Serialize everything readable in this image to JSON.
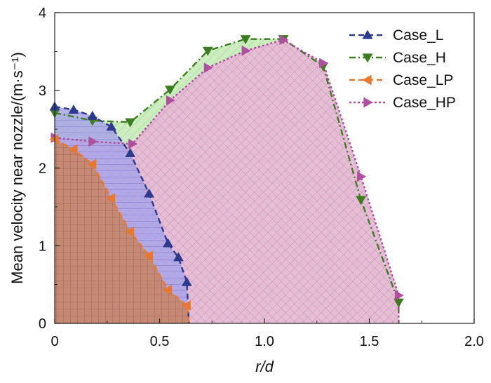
{
  "chart_data": {
    "type": "area",
    "xlabel": "r/d",
    "ylabel": "Mean velocity near nozzle/(m·s⁻¹)",
    "xlim": [
      0,
      2.0
    ],
    "ylim": [
      0,
      4
    ],
    "xticks": [
      "0",
      "0.5",
      "1.0",
      "1.5",
      "2.0"
    ],
    "xtick_values": [
      0,
      0.5,
      1.0,
      1.5,
      2.0
    ],
    "yticks": [
      "0",
      "1",
      "2",
      "3",
      "4"
    ],
    "ytick_values": [
      0,
      1,
      2,
      3,
      4
    ],
    "legend_position": "top-right",
    "series": [
      {
        "name": "Case_L",
        "color": "#2e3a8c",
        "fill": "#9a97e6",
        "marker": "triangle-up",
        "x": [
          0,
          0.09,
          0.18,
          0.27,
          0.36,
          0.45,
          0.54,
          0.59,
          0.63,
          0.64
        ],
        "y": [
          2.79,
          2.75,
          2.67,
          2.53,
          2.19,
          1.67,
          1.03,
          0.85,
          0.53,
          0.0
        ]
      },
      {
        "name": "Case_H",
        "color": "#3b7d1f",
        "fill": "#bfe8b0",
        "marker": "triangle-down",
        "x": [
          0,
          0.18,
          0.36,
          0.55,
          0.73,
          0.91,
          1.09,
          1.28,
          1.46,
          1.64,
          1.64
        ],
        "y": [
          2.71,
          2.61,
          2.59,
          3.01,
          3.51,
          3.66,
          3.66,
          3.31,
          1.59,
          0.27,
          0.0
        ]
      },
      {
        "name": "Case_LP",
        "color": "#e8782f",
        "fill": "#c98a70",
        "marker": "triangle-left",
        "x": [
          0,
          0.09,
          0.18,
          0.27,
          0.36,
          0.45,
          0.54,
          0.63,
          0.64
        ],
        "y": [
          2.37,
          2.24,
          2.05,
          1.61,
          1.18,
          0.87,
          0.43,
          0.23,
          0.0
        ]
      },
      {
        "name": "Case_HP",
        "color": "#b04ea0",
        "fill": "#e8b8d8",
        "marker": "triangle-right",
        "x": [
          0,
          0.18,
          0.37,
          0.55,
          0.73,
          0.91,
          1.09,
          1.28,
          1.46,
          1.64,
          1.64
        ],
        "y": [
          2.39,
          2.34,
          2.31,
          2.87,
          3.29,
          3.51,
          3.65,
          3.35,
          1.89,
          0.36,
          0.0
        ]
      }
    ]
  }
}
